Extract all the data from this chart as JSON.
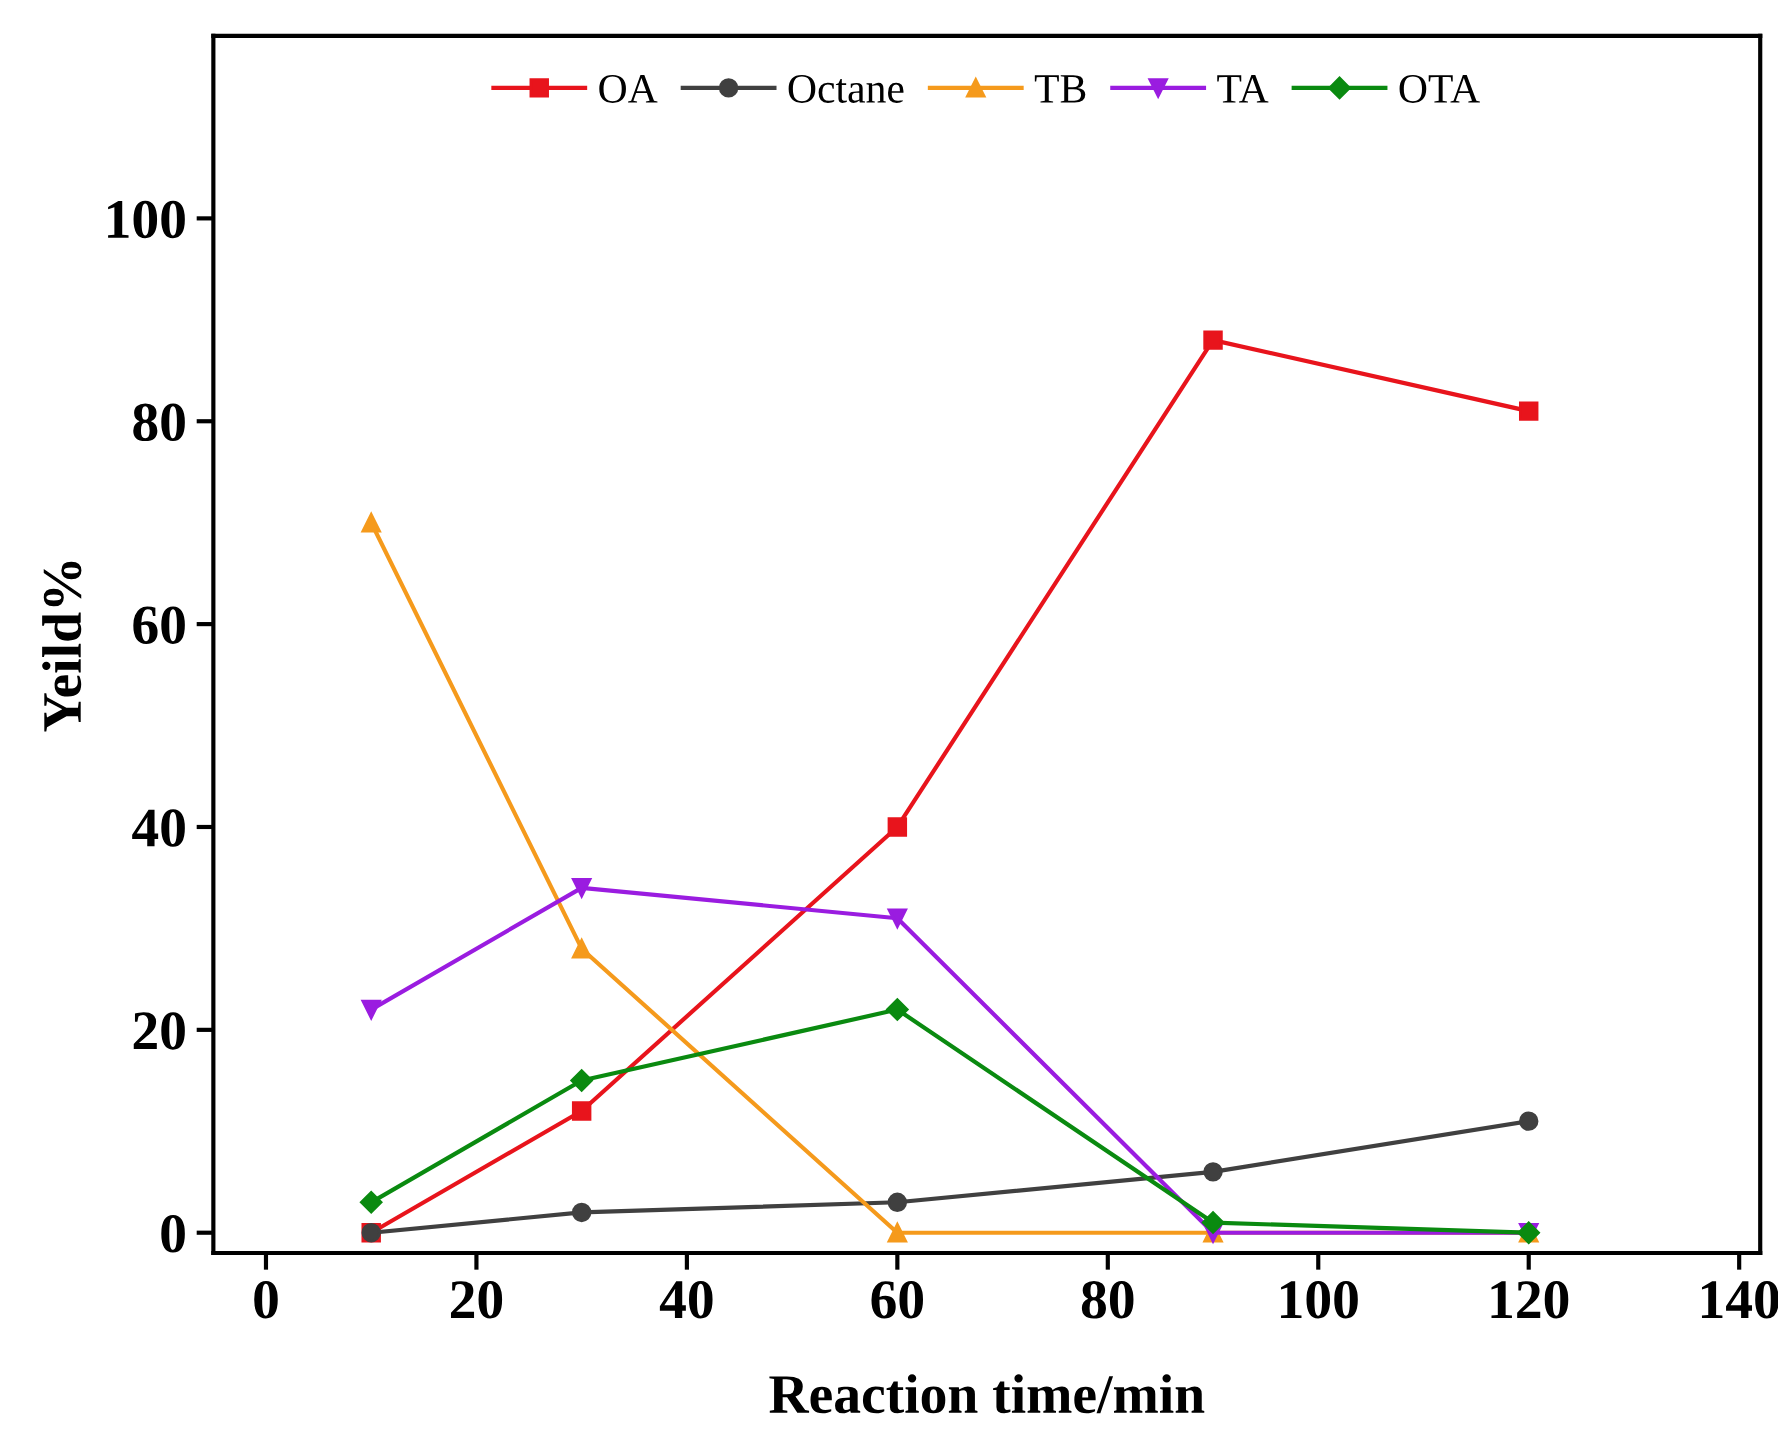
{
  "chart_data": {
    "type": "line",
    "xlabel": "Reaction time/min",
    "ylabel": "Yeild%",
    "x": [
      10,
      30,
      60,
      90,
      120
    ],
    "series": [
      {
        "name": "OA",
        "color": "#e8141c",
        "marker": "square",
        "values": [
          0,
          12,
          40,
          88,
          81
        ]
      },
      {
        "name": "Octane",
        "color": "#404040",
        "marker": "circle",
        "values": [
          0,
          2,
          3,
          6,
          11
        ]
      },
      {
        "name": "TB",
        "color": "#f59a1c",
        "marker": "triangle",
        "values": [
          70,
          28,
          0,
          0,
          0
        ]
      },
      {
        "name": "TA",
        "color": "#9a1ce0",
        "marker": "triangle_down",
        "values": [
          22,
          34,
          31,
          0,
          0
        ]
      },
      {
        "name": "OTA",
        "color": "#0a8a10",
        "marker": "diamond",
        "values": [
          3,
          15,
          22,
          1,
          0
        ]
      }
    ],
    "xlim": [
      -5,
      142
    ],
    "xticks": [
      0,
      20,
      40,
      60,
      80,
      100,
      120,
      140
    ],
    "ylim": [
      -2,
      118
    ],
    "yticks": [
      0,
      20,
      40,
      60,
      80,
      100
    ],
    "grid": false,
    "legend": "top",
    "line_style": "solid"
  }
}
